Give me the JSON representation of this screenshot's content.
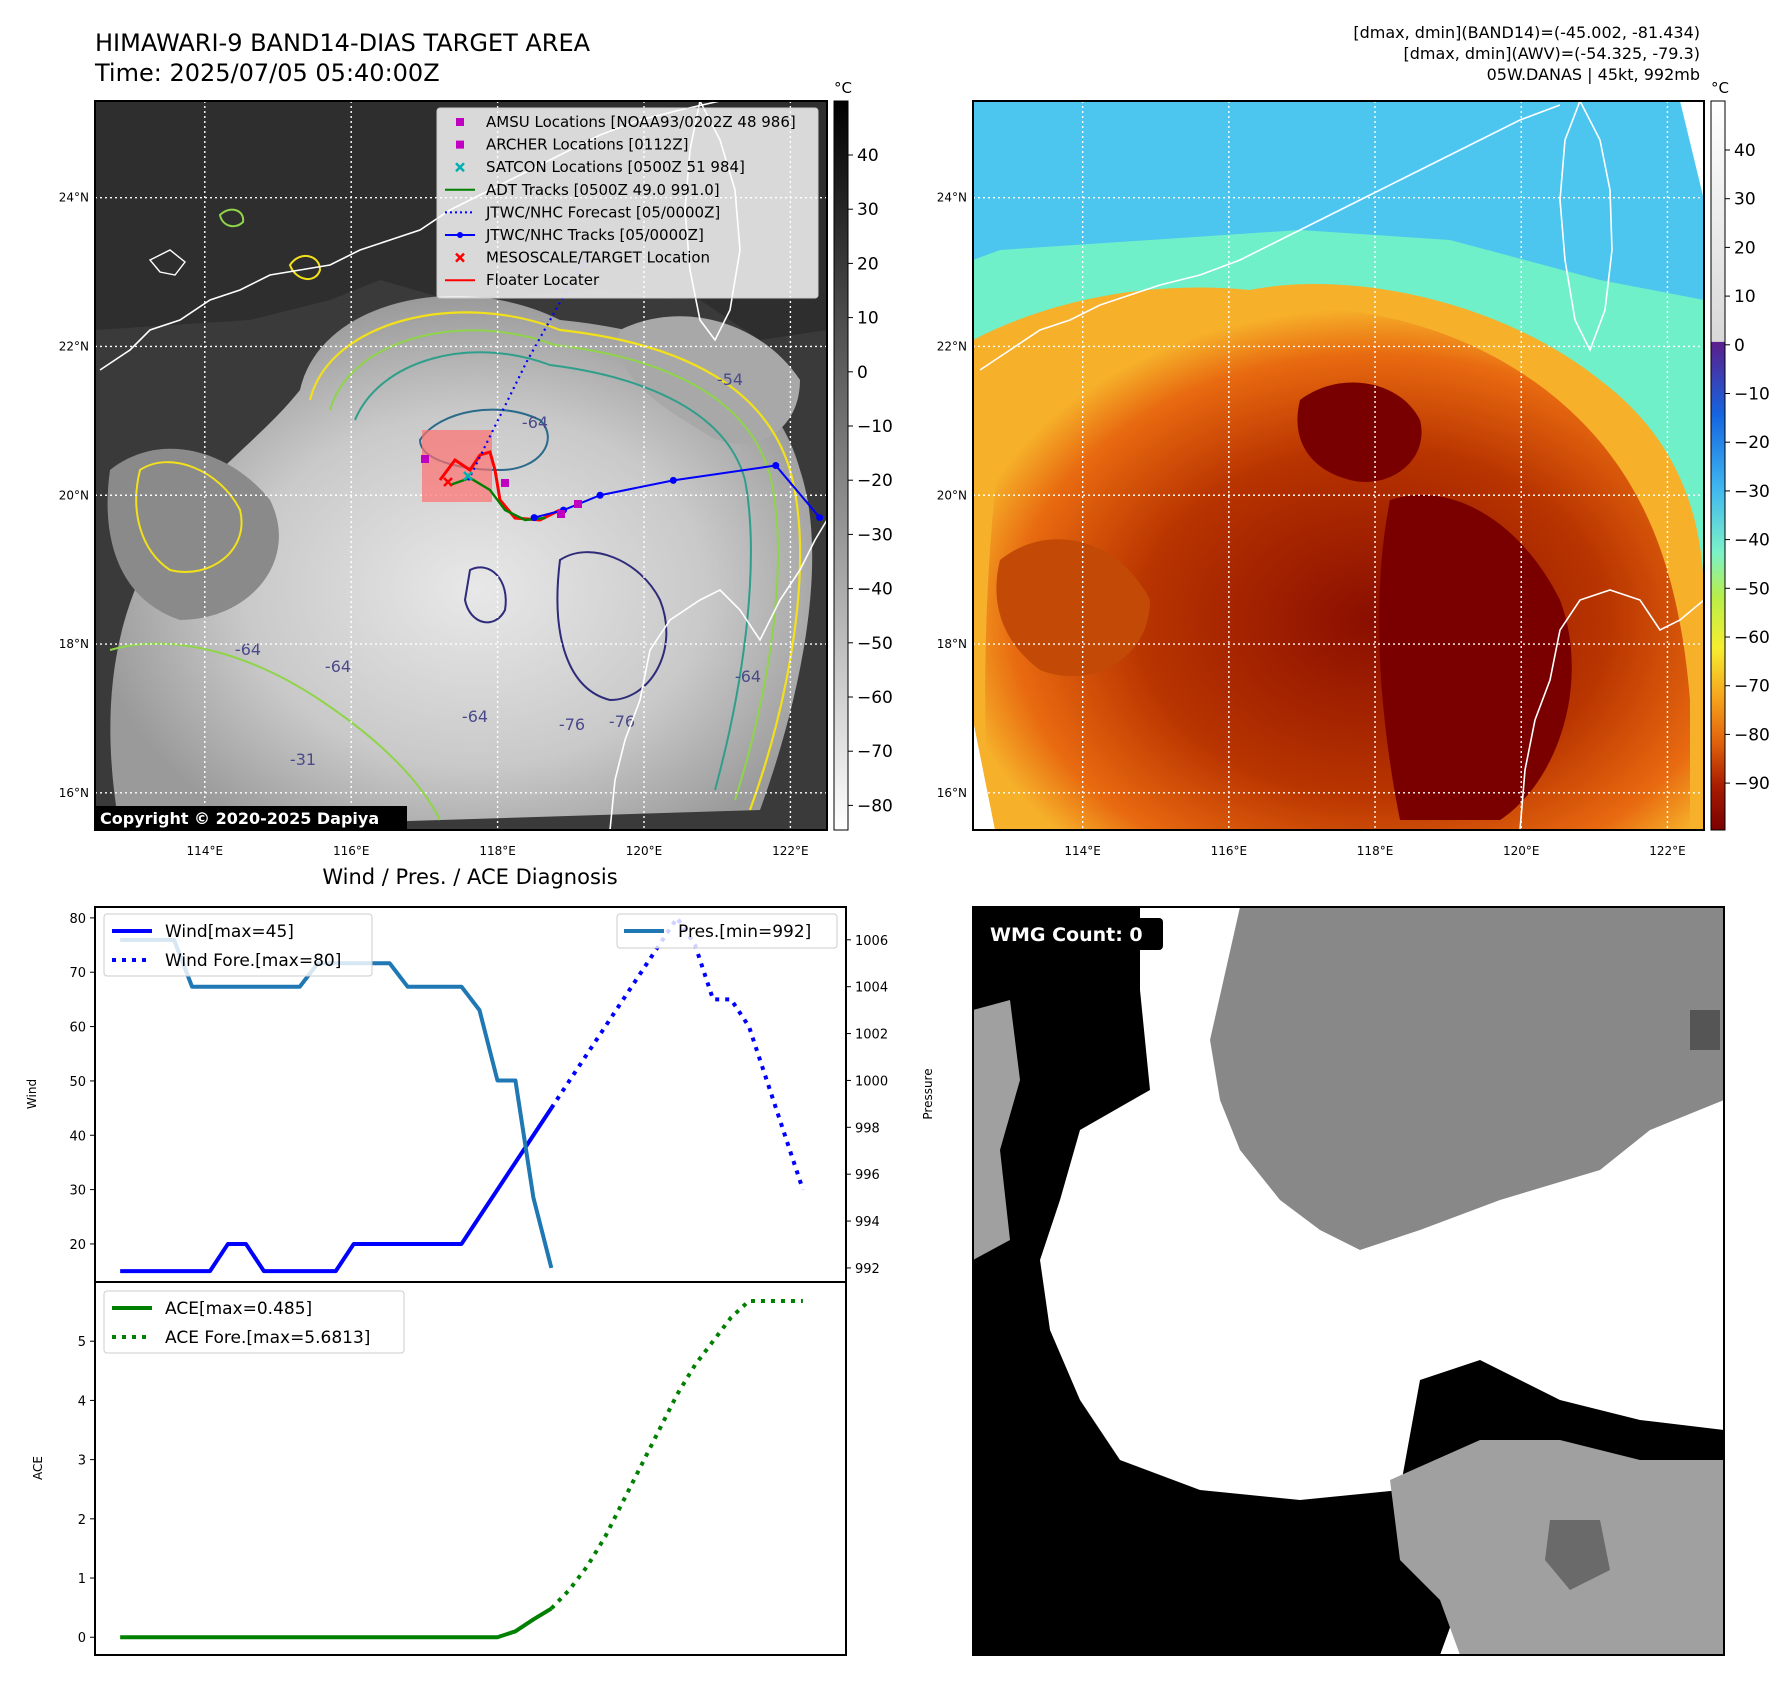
{
  "header": {
    "title": "HIMAWARI-9 BAND14-DIAS TARGET AREA",
    "time": "Time: 2025/07/05 05:40:00Z",
    "info_line1": "[dmax, dmin](BAND14)=(-45.002, -81.434)",
    "info_line2": "[dmax, dmin](AWV)=(-54.325, -79.3)",
    "info_line3": "05W.DANAS | 45kt, 992mb"
  },
  "map_axes": {
    "lon_ticks": [
      "114°E",
      "116°E",
      "118°E",
      "120°E",
      "122°E"
    ],
    "lat_ticks": [
      "24°N",
      "22°N",
      "20°N",
      "18°N",
      "16°N"
    ],
    "lon_range": [
      112.5,
      122.5
    ],
    "lat_range": [
      15.5,
      25.3
    ]
  },
  "ir_map": {
    "copyright": "Copyright © 2020-2025 Dapiya",
    "colorbar_unit": "°C",
    "colorbar_ticks": [
      "40",
      "30",
      "20",
      "10",
      "0",
      "−10",
      "−20",
      "−30",
      "−40",
      "−50",
      "−60",
      "−70",
      "−80"
    ],
    "contour_labels": [
      "-64",
      "-64",
      "-31",
      "-76",
      "-76",
      "-64",
      "-54",
      "-64",
      "-64"
    ],
    "legend": [
      {
        "label": "AMSU Locations [NOAA93/0202Z 48 986]",
        "marker": "square",
        "color": "#c000c0"
      },
      {
        "label": "ARCHER Locations [0112Z]",
        "marker": "square",
        "color": "#c000c0"
      },
      {
        "label": "SATCON Locations [0500Z 51 984]",
        "marker": "x",
        "color": "#00b0b0"
      },
      {
        "label": "ADT Tracks [0500Z 49.0 991.0]",
        "marker": "line",
        "color": "#008000"
      },
      {
        "label": "JTWC/NHC Forecast [05/0000Z]",
        "marker": "dotted",
        "color": "#0000ff"
      },
      {
        "label": "JTWC/NHC Tracks [05/0000Z]",
        "marker": "line-dot",
        "color": "#0000ff"
      },
      {
        "label": "MESOSCALE/TARGET Location",
        "marker": "x",
        "color": "#ff0000"
      },
      {
        "label": "Floater Locater",
        "marker": "line",
        "color": "#ff0000"
      }
    ],
    "jtwc_track": [
      [
        118.5,
        19.7
      ],
      [
        118.9,
        19.8
      ],
      [
        119.4,
        20.0
      ],
      [
        120.4,
        20.2
      ],
      [
        121.8,
        20.4
      ],
      [
        122.4,
        19.7
      ]
    ],
    "jtwc_forecast": [
      [
        117.6,
        20.2
      ],
      [
        118.4,
        21.8
      ],
      [
        119.2,
        23.2
      ]
    ]
  },
  "awv_map": {
    "colorbar_unit": "°C",
    "colorbar_ticks": [
      "40",
      "30",
      "20",
      "10",
      "0",
      "−10",
      "−20",
      "−30",
      "−40",
      "−50",
      "−60",
      "−70",
      "−80",
      "−90"
    ]
  },
  "wmg": {
    "label": "WMG Count: 0"
  },
  "chart_data": [
    {
      "type": "line",
      "title": "Wind / Pres. / ACE Diagnosis",
      "ylabel": "Wind",
      "ylabel_right": "Pressure",
      "ylim": [
        13,
        82
      ],
      "ylim_right": [
        991.4,
        1007.4
      ],
      "yticks": [
        20,
        30,
        40,
        50,
        60,
        70,
        80
      ],
      "yticks_right": [
        992,
        994,
        996,
        998,
        1000,
        1002,
        1004,
        1006
      ],
      "x": [
        0,
        1,
        2,
        3,
        4,
        5,
        6,
        7,
        8,
        9,
        10,
        11,
        12,
        13,
        14,
        15,
        16,
        17,
        18,
        19,
        20,
        21,
        22,
        23,
        24,
        25,
        26,
        27,
        28,
        29,
        30,
        31,
        32,
        33,
        34,
        35,
        36,
        37,
        38
      ],
      "xlim": [
        -1.4,
        40.4
      ],
      "series": [
        {
          "name": "Wind[max=45]",
          "axis": "left",
          "style": "solid",
          "color": "#0000ff",
          "x": [
            0,
            1,
            2,
            3,
            4,
            5,
            6,
            7,
            8,
            9,
            10,
            11,
            12,
            13,
            14,
            15,
            16,
            17,
            18,
            19,
            20,
            21,
            22,
            23,
            24
          ],
          "values": [
            15,
            15,
            15,
            15,
            15,
            15,
            20,
            20,
            15,
            15,
            15,
            15,
            15,
            20,
            20,
            20,
            20,
            20,
            20,
            20,
            25,
            30,
            35,
            40,
            45
          ]
        },
        {
          "name": "Wind Fore.[max=80]",
          "axis": "left",
          "style": "dotted",
          "color": "#0000ff",
          "x": [
            24,
            25,
            26,
            27,
            28,
            29,
            30,
            31,
            32,
            33,
            34,
            35,
            36,
            37,
            38
          ],
          "values": [
            45,
            50,
            55,
            60,
            65,
            70,
            75,
            80,
            75,
            65,
            65,
            60,
            50,
            40,
            30
          ]
        },
        {
          "name": "Pres.[min=992]",
          "axis": "right",
          "style": "solid",
          "color": "#1f77b4",
          "x": [
            0,
            1,
            2,
            3,
            4,
            5,
            6,
            7,
            8,
            9,
            10,
            11,
            12,
            13,
            14,
            15,
            16,
            17,
            18,
            19,
            20,
            21,
            22,
            23,
            24
          ],
          "values": [
            1006,
            1006,
            1006,
            1006,
            1004,
            1004,
            1004,
            1004,
            1004,
            1004,
            1004,
            1005,
            1005,
            1005,
            1005,
            1005,
            1004,
            1004,
            1004,
            1004,
            1003,
            1000,
            1000,
            995,
            992
          ]
        }
      ]
    },
    {
      "type": "line",
      "ylabel": "ACE",
      "ylim": [
        -0.3,
        6.0
      ],
      "yticks": [
        0,
        1,
        2,
        3,
        4,
        5
      ],
      "xlim": [
        -1.4,
        40.4
      ],
      "series": [
        {
          "name": "ACE[max=0.485]",
          "style": "solid",
          "color": "#008000",
          "x": [
            0,
            5,
            10,
            15,
            20,
            21,
            22,
            23,
            24
          ],
          "values": [
            0,
            0,
            0,
            0,
            0,
            0,
            0.1,
            0.3,
            0.485
          ]
        },
        {
          "name": "ACE Fore.[max=5.6813]",
          "style": "dotted",
          "color": "#008000",
          "x": [
            24,
            25,
            26,
            27,
            28,
            29,
            30,
            31,
            32,
            33,
            34,
            35,
            36,
            37,
            38
          ],
          "values": [
            0.485,
            0.8,
            1.2,
            1.7,
            2.3,
            2.9,
            3.5,
            4.1,
            4.6,
            5.0,
            5.4,
            5.68,
            5.68,
            5.68,
            5.68
          ]
        }
      ]
    }
  ]
}
